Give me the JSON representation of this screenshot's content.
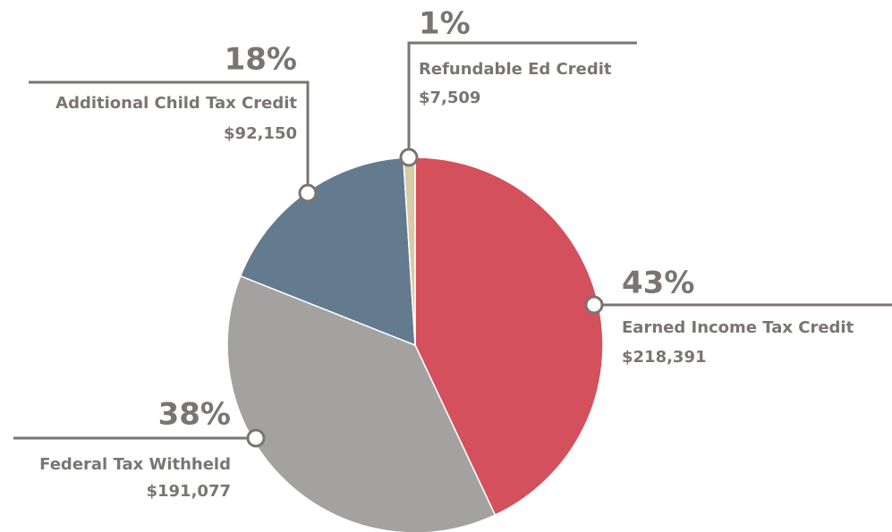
{
  "chart_data": {
    "type": "pie",
    "series": [
      {
        "name": "Earned Income Tax Credit",
        "color": "#d4505c"
      },
      {
        "name": "Federal Tax Withheld",
        "color": "#a3a2a0"
      },
      {
        "name": "Additional Child Tax Credit",
        "color": "#647a8e"
      },
      {
        "name": "Refundable Ed Credit",
        "color": "#d6cba6"
      }
    ],
    "values": [
      43,
      38,
      18,
      1
    ],
    "value_labels": [
      "43%",
      "38%",
      "18%",
      "1%"
    ],
    "amounts": [
      "$218,391",
      "$191,077",
      "$92,150",
      "$7,509"
    ]
  }
}
